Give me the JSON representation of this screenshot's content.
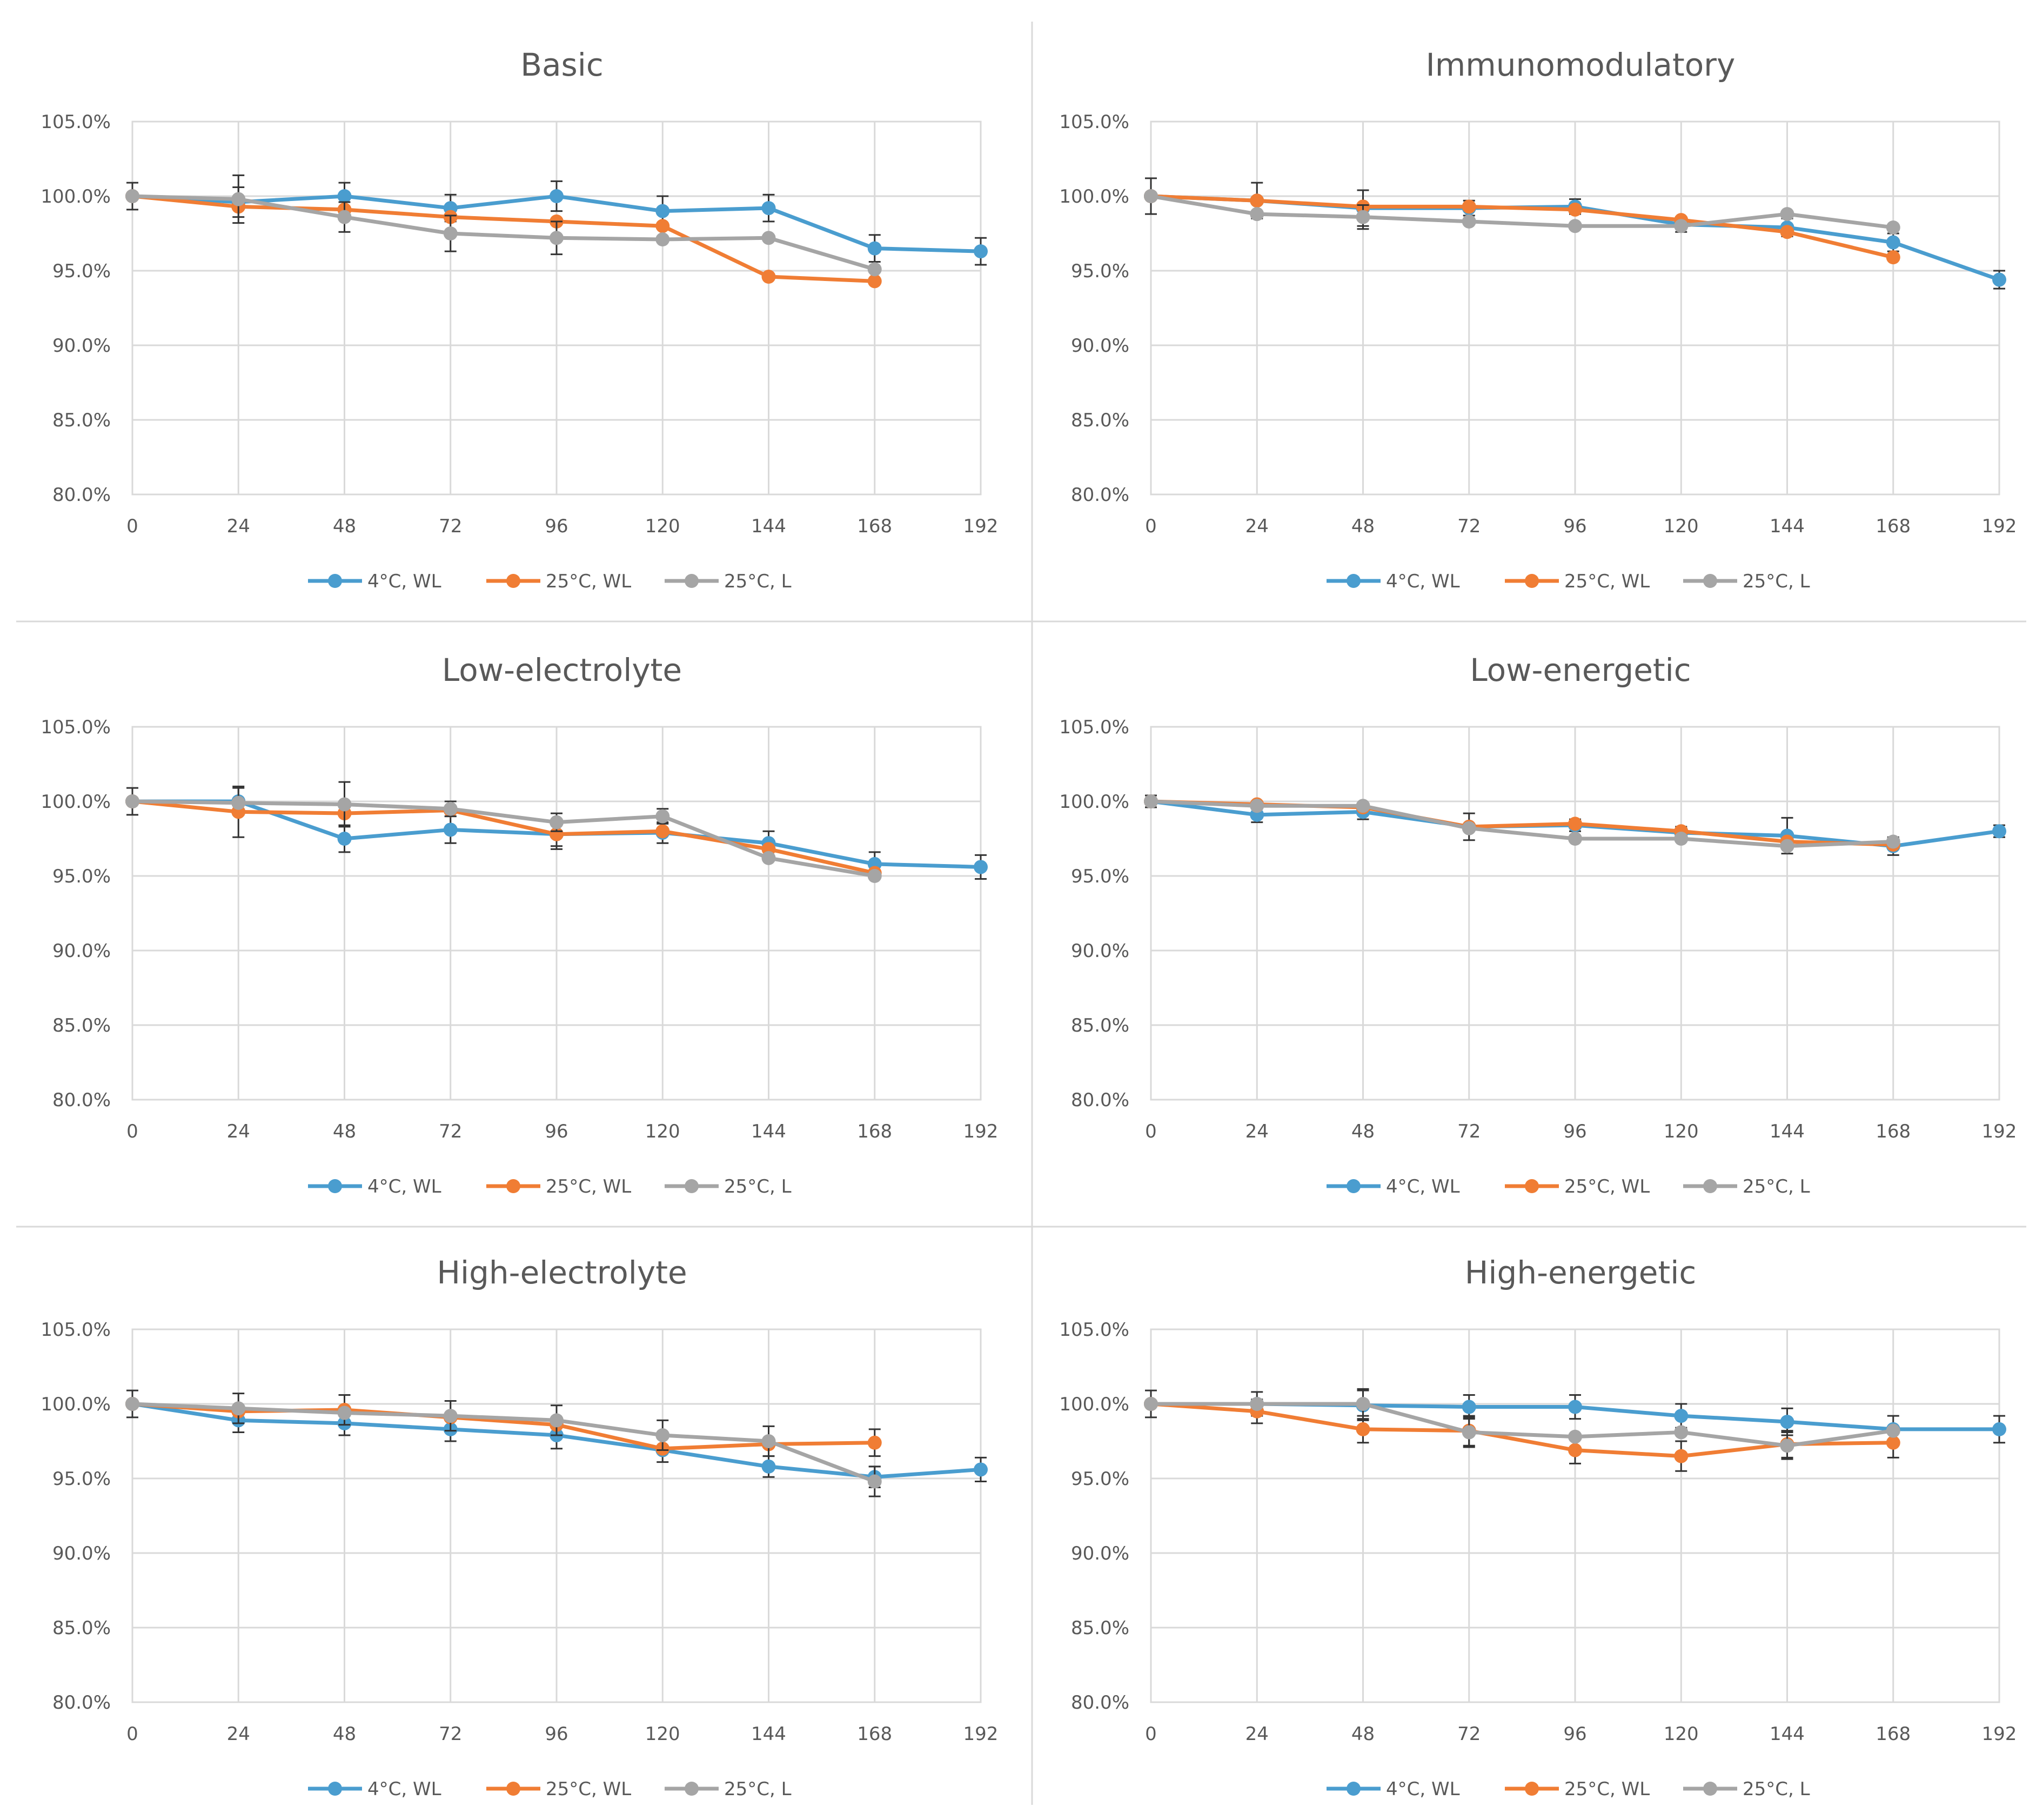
{
  "colors": {
    "series_4C_WL": "#4a9dcf",
    "series_25C_WL": "#f07d34",
    "series_25C_L": "#a5a5a5",
    "grid": "#d9d9d9",
    "text": "#595959",
    "errorbar": "#333333"
  },
  "chart_data": [
    {
      "type": "line",
      "title": "Basic",
      "x": [
        0,
        24,
        48,
        72,
        96,
        120,
        144,
        168,
        192
      ],
      "x_ticks": [
        "0",
        "24",
        "48",
        "72",
        "96",
        "120",
        "144",
        "168",
        "192"
      ],
      "y_ticks": [
        "80.0%",
        "85.0%",
        "90.0%",
        "95.0%",
        "100.0%",
        "105.0%"
      ],
      "ylim": [
        80,
        105
      ],
      "legend": [
        "4°C, WL",
        "25°C, WL",
        "25°C, L"
      ],
      "legend_position": "bottom",
      "series": [
        {
          "name": "4°C, WL",
          "values": [
            100.0,
            99.6,
            100.0,
            99.2,
            100.0,
            99.0,
            99.2,
            96.5,
            96.3
          ],
          "errors": [
            0.9,
            1.0,
            0.9,
            0.9,
            1.0,
            1.0,
            0.9,
            0.9,
            0.9
          ]
        },
        {
          "name": "25°C, WL",
          "values": [
            100.0,
            99.3,
            99.1,
            98.6,
            98.3,
            98.0,
            94.6,
            94.3,
            null
          ],
          "errors": [
            0.0,
            0.0,
            0.0,
            0.0,
            0.0,
            0.0,
            0.0,
            0.0,
            null
          ]
        },
        {
          "name": "25°C, L",
          "values": [
            100.0,
            99.8,
            98.6,
            97.5,
            97.2,
            97.1,
            97.2,
            95.1,
            null
          ],
          "errors": [
            0.0,
            1.6,
            1.0,
            1.2,
            1.1,
            0.0,
            0.0,
            0.0,
            null
          ]
        }
      ]
    },
    {
      "type": "line",
      "title": "Immunomodulatory",
      "x": [
        0,
        24,
        48,
        72,
        96,
        120,
        144,
        168,
        192
      ],
      "x_ticks": [
        "0",
        "24",
        "48",
        "72",
        "96",
        "120",
        "144",
        "168",
        "192"
      ],
      "y_ticks": [
        "80.0%",
        "85.0%",
        "90.0%",
        "95.0%",
        "100.0%",
        "105.0%"
      ],
      "ylim": [
        80,
        105
      ],
      "legend": [
        "4°C, WL",
        "25°C, WL",
        "25°C, L"
      ],
      "legend_position": "bottom",
      "series": [
        {
          "name": "4°C, WL",
          "values": [
            100.0,
            99.7,
            99.2,
            99.2,
            99.3,
            98.1,
            97.9,
            96.9,
            94.4
          ],
          "errors": [
            1.2,
            1.2,
            1.2,
            0.5,
            0.5,
            0.5,
            0.6,
            0.6,
            0.6
          ]
        },
        {
          "name": "25°C, WL",
          "values": [
            100.0,
            99.7,
            99.3,
            99.3,
            99.1,
            98.4,
            97.6,
            95.9,
            null
          ],
          "errors": [
            0.0,
            0.0,
            0.0,
            0.0,
            0.0,
            0.0,
            0.0,
            0.0,
            null
          ]
        },
        {
          "name": "25°C, L",
          "values": [
            100.0,
            98.8,
            98.6,
            98.3,
            98.0,
            98.0,
            98.8,
            97.9,
            null
          ],
          "errors": [
            0.0,
            0.0,
            0.8,
            0.0,
            0.0,
            0.0,
            0.0,
            0.0,
            null
          ]
        }
      ]
    },
    {
      "type": "line",
      "title": "Low-electrolyte",
      "x": [
        0,
        24,
        48,
        72,
        96,
        120,
        144,
        168,
        192
      ],
      "x_ticks": [
        "0",
        "24",
        "48",
        "72",
        "96",
        "120",
        "144",
        "168",
        "192"
      ],
      "y_ticks": [
        "80.0%",
        "85.0%",
        "90.0%",
        "95.0%",
        "100.0%",
        "105.0%"
      ],
      "ylim": [
        80,
        105
      ],
      "legend": [
        "4°C, WL",
        "25°C, WL",
        "25°C, L"
      ],
      "legend_position": "bottom",
      "series": [
        {
          "name": "4°C, WL",
          "values": [
            100.0,
            100.0,
            97.5,
            98.1,
            97.8,
            97.9,
            97.2,
            95.8,
            95.6
          ],
          "errors": [
            0.9,
            0.9,
            0.9,
            0.9,
            0.8,
            0.7,
            0.8,
            0.8,
            0.8
          ]
        },
        {
          "name": "25°C, WL",
          "values": [
            100.0,
            99.3,
            99.2,
            99.4,
            97.8,
            98.0,
            96.8,
            95.2,
            null
          ],
          "errors": [
            0.0,
            1.7,
            0.0,
            0.0,
            1.0,
            0.0,
            0.0,
            0.0,
            null
          ]
        },
        {
          "name": "25°C, L",
          "values": [
            100.0,
            99.9,
            99.8,
            99.5,
            98.6,
            99.0,
            96.2,
            95.0,
            null
          ],
          "errors": [
            0.0,
            0.0,
            1.5,
            0.5,
            0.6,
            0.5,
            0.0,
            0.0,
            null
          ]
        }
      ]
    },
    {
      "type": "line",
      "title": "Low-energetic",
      "x": [
        0,
        24,
        48,
        72,
        96,
        120,
        144,
        168,
        192
      ],
      "x_ticks": [
        "0",
        "24",
        "48",
        "72",
        "96",
        "120",
        "144",
        "168",
        "192"
      ],
      "y_ticks": [
        "80.0%",
        "85.0%",
        "90.0%",
        "95.0%",
        "100.0%",
        "105.0%"
      ],
      "ylim": [
        80,
        105
      ],
      "legend": [
        "4°C, WL",
        "25°C, WL",
        "25°C, L"
      ],
      "legend_position": "bottom",
      "series": [
        {
          "name": "4°C, WL",
          "values": [
            100.0,
            99.1,
            99.3,
            98.3,
            98.4,
            97.9,
            97.7,
            97.0,
            98.0
          ],
          "errors": [
            0.4,
            0.5,
            0.5,
            0.9,
            0.4,
            0.4,
            1.2,
            0.6,
            0.4
          ]
        },
        {
          "name": "25°C, WL",
          "values": [
            100.0,
            99.8,
            99.6,
            98.3,
            98.5,
            98.0,
            97.3,
            97.1,
            null
          ],
          "errors": [
            0.0,
            0.0,
            0.0,
            0.0,
            0.0,
            0.0,
            0.0,
            0.0,
            null
          ]
        },
        {
          "name": "25°C, L",
          "values": [
            100.0,
            99.7,
            99.7,
            98.2,
            97.5,
            97.5,
            97.0,
            97.3,
            null
          ],
          "errors": [
            0.0,
            0.0,
            0.0,
            0.0,
            0.0,
            0.0,
            0.0,
            0.0,
            null
          ]
        }
      ]
    },
    {
      "type": "line",
      "title": "High-electrolyte",
      "x": [
        0,
        24,
        48,
        72,
        96,
        120,
        144,
        168,
        192
      ],
      "x_ticks": [
        "0",
        "24",
        "48",
        "72",
        "96",
        "120",
        "144",
        "168",
        "192"
      ],
      "y_ticks": [
        "80.0%",
        "85.0%",
        "90.0%",
        "95.0%",
        "100.0%",
        "105.0%"
      ],
      "ylim": [
        80,
        105
      ],
      "legend": [
        "4°C, WL",
        "25°C, WL",
        "25°C, L"
      ],
      "legend_position": "bottom",
      "series": [
        {
          "name": "4°C, WL",
          "values": [
            100.0,
            98.9,
            98.7,
            98.3,
            97.9,
            96.9,
            95.8,
            95.1,
            95.6
          ],
          "errors": [
            0.9,
            0.8,
            0.8,
            0.8,
            0.9,
            0.8,
            0.7,
            0.7,
            0.8
          ]
        },
        {
          "name": "25°C, WL",
          "values": [
            100.0,
            99.5,
            99.6,
            99.1,
            98.6,
            97.0,
            97.3,
            97.4,
            null
          ],
          "errors": [
            0.0,
            0.0,
            1.0,
            0.0,
            0.0,
            0.0,
            0.0,
            0.9,
            null
          ]
        },
        {
          "name": "25°C, L",
          "values": [
            100.0,
            99.7,
            99.4,
            99.2,
            98.9,
            97.9,
            97.5,
            94.8,
            null
          ],
          "errors": [
            0.0,
            1.0,
            0.0,
            1.0,
            1.0,
            1.0,
            1.0,
            1.0,
            null
          ]
        }
      ]
    },
    {
      "type": "line",
      "title": "High-energetic",
      "x": [
        0,
        24,
        48,
        72,
        96,
        120,
        144,
        168,
        192
      ],
      "x_ticks": [
        "0",
        "24",
        "48",
        "72",
        "96",
        "120",
        "144",
        "168",
        "192"
      ],
      "y_ticks": [
        "80.0%",
        "85.0%",
        "90.0%",
        "95.0%",
        "100.0%",
        "105.0%"
      ],
      "ylim": [
        80,
        105
      ],
      "legend": [
        "4°C, WL",
        "25°C, WL",
        "25°C, L"
      ],
      "legend_position": "bottom",
      "series": [
        {
          "name": "4°C, WL",
          "values": [
            100.0,
            100.0,
            99.9,
            99.8,
            99.8,
            99.2,
            98.8,
            98.3,
            98.3
          ],
          "errors": [
            0.9,
            0.8,
            1.0,
            0.8,
            0.8,
            0.8,
            0.9,
            0.9,
            0.9
          ]
        },
        {
          "name": "25°C, WL",
          "values": [
            100.0,
            99.5,
            98.3,
            98.2,
            96.9,
            96.5,
            97.3,
            97.4,
            null
          ],
          "errors": [
            0.0,
            0.8,
            0.9,
            1.0,
            0.9,
            1.0,
            0.9,
            1.0,
            null
          ]
        },
        {
          "name": "25°C, L",
          "values": [
            100.0,
            100.0,
            100.0,
            98.1,
            97.8,
            98.1,
            97.2,
            98.2,
            null
          ],
          "errors": [
            0.0,
            0.0,
            1.0,
            1.0,
            0.0,
            0.0,
            0.9,
            0.0,
            null
          ]
        }
      ]
    }
  ]
}
